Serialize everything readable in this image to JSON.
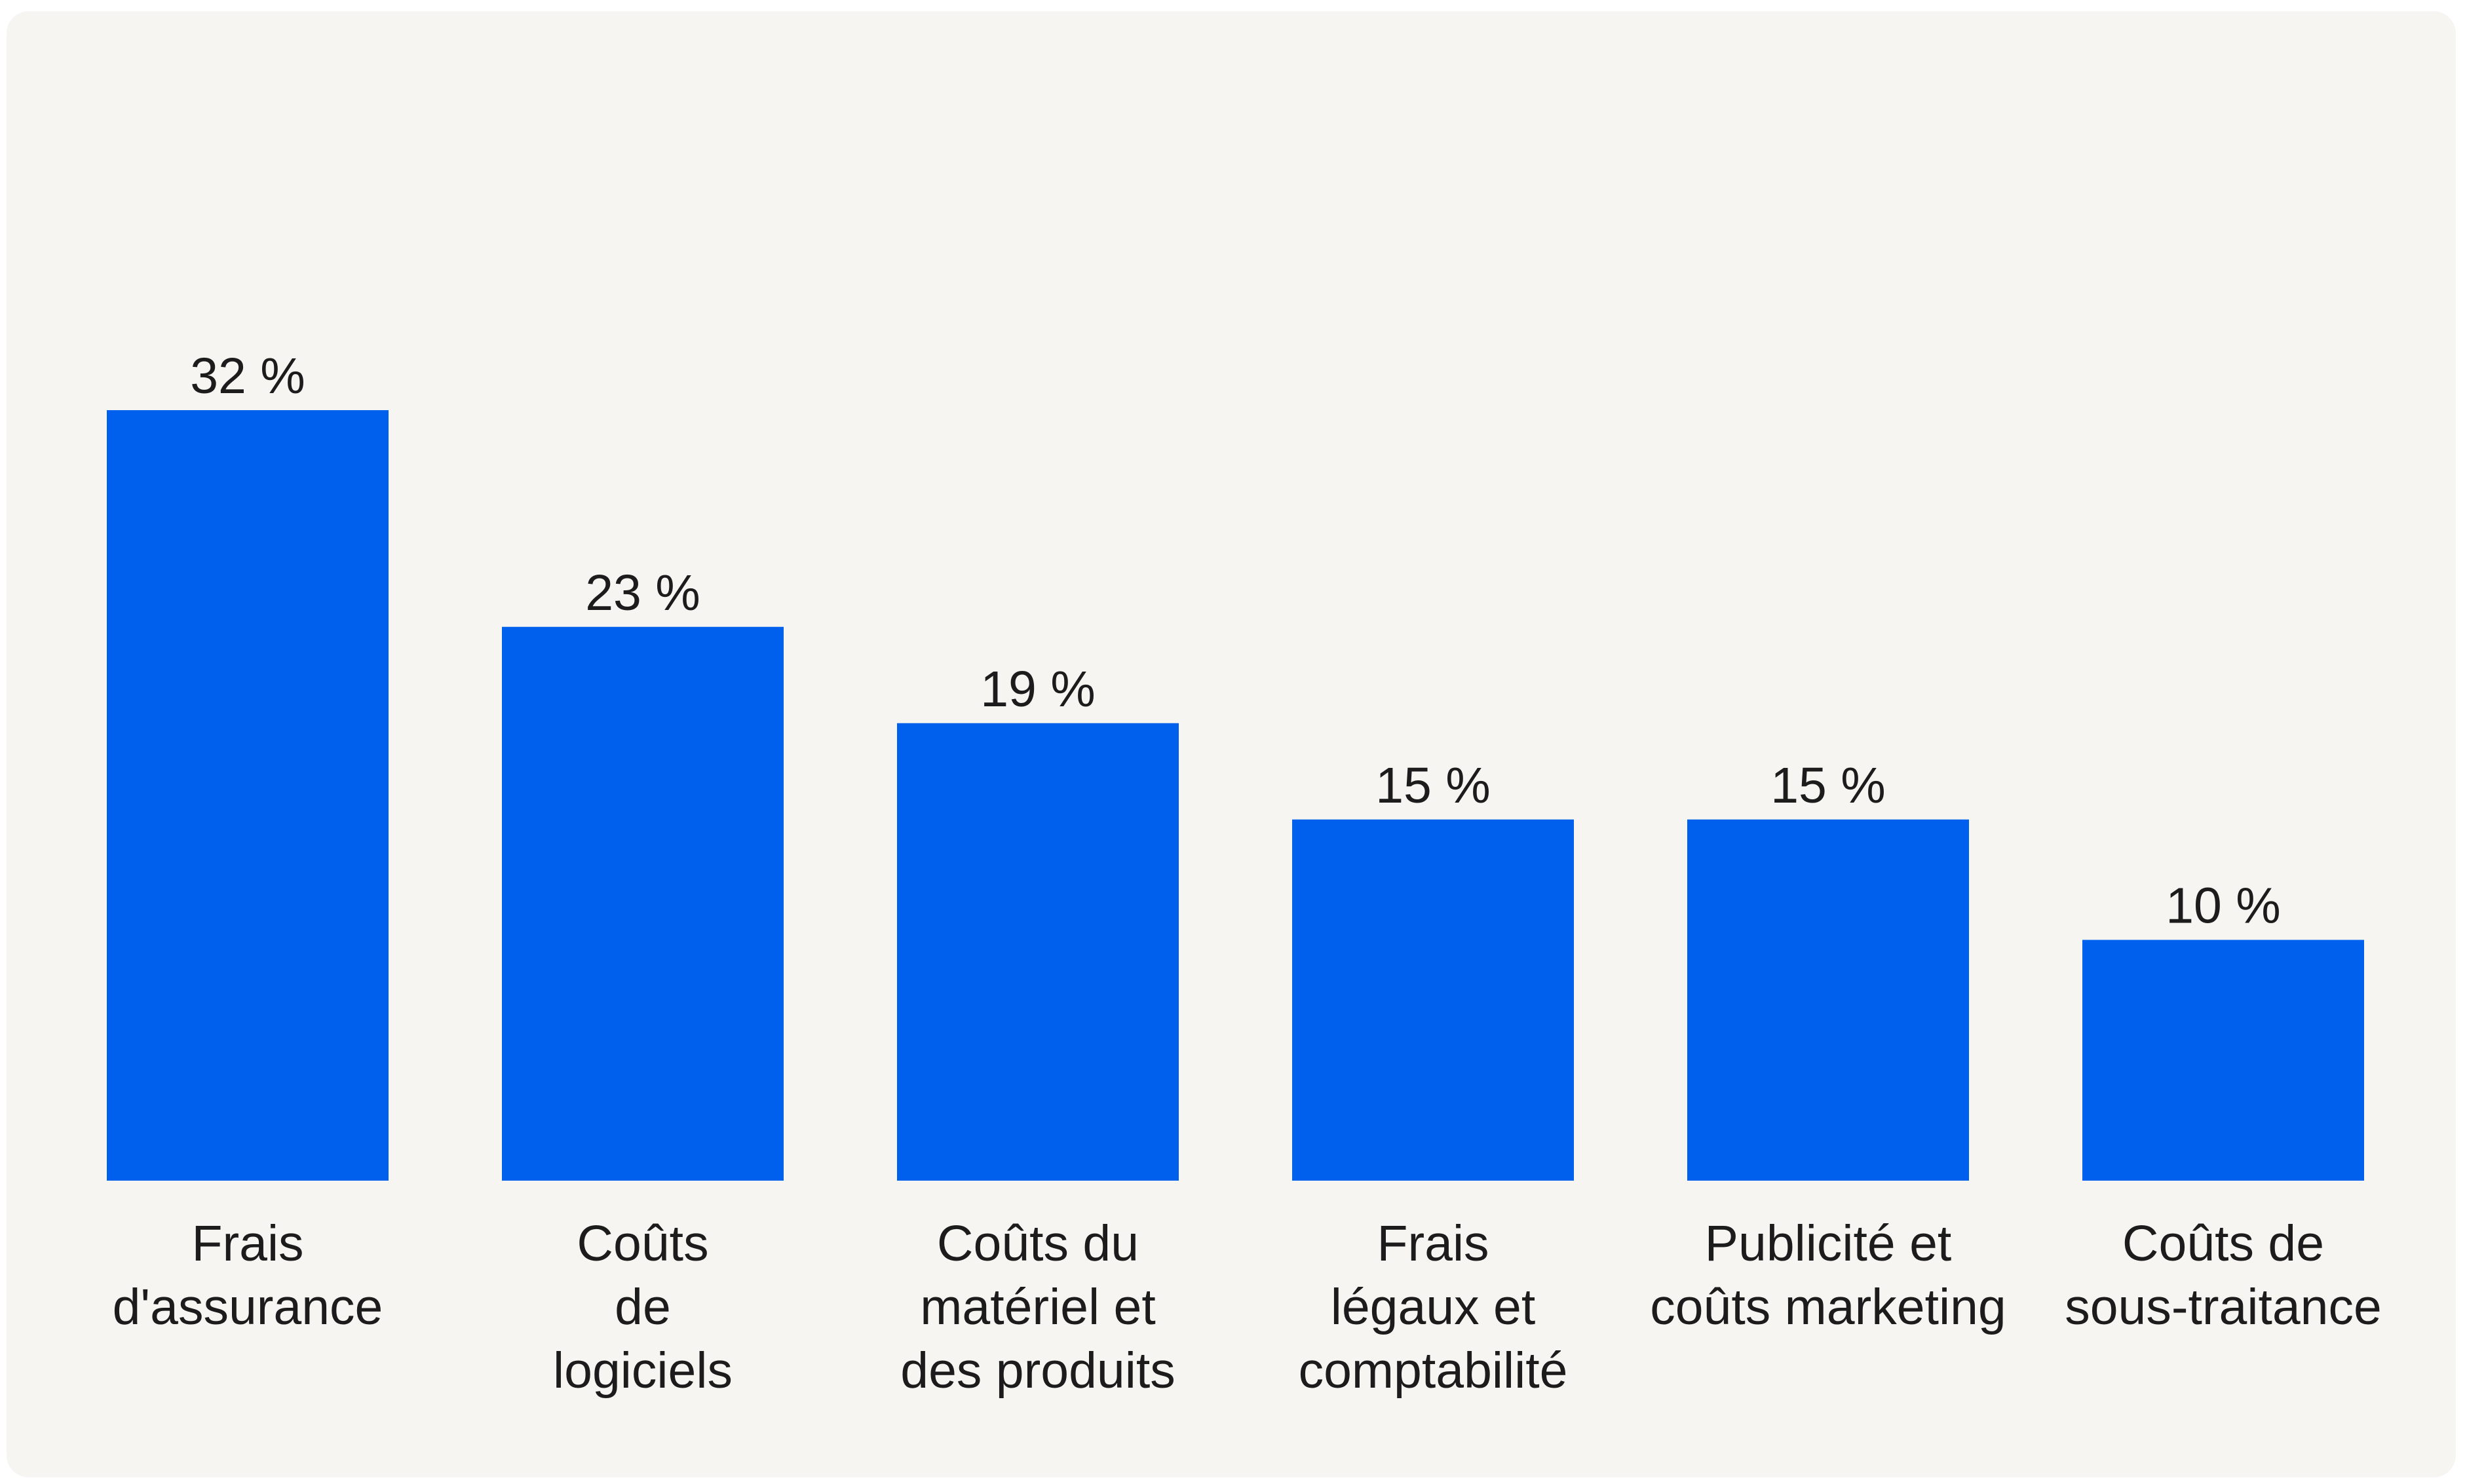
{
  "chart_data": {
    "type": "bar",
    "title": "",
    "xlabel": "",
    "ylabel": "",
    "ylim": [
      0,
      32
    ],
    "grid": false,
    "legend": "none",
    "bar_color": "#0060ee",
    "background_color": "#f6f5f1",
    "categories": [
      [
        "Frais",
        "d'assurance"
      ],
      [
        "Coûts",
        "de",
        "logiciels"
      ],
      [
        "Coûts du",
        "matériel et",
        "des produits"
      ],
      [
        "Frais",
        "légaux et",
        "comptabilité"
      ],
      [
        "Publicité et",
        "coûts marketing"
      ],
      [
        "Coûts de",
        "sous-traitance"
      ]
    ],
    "values": [
      32,
      23,
      19,
      15,
      15,
      10
    ],
    "value_labels": [
      "32 %",
      "23 %",
      "19 %",
      "15 %",
      "15 %",
      "10 %"
    ]
  }
}
